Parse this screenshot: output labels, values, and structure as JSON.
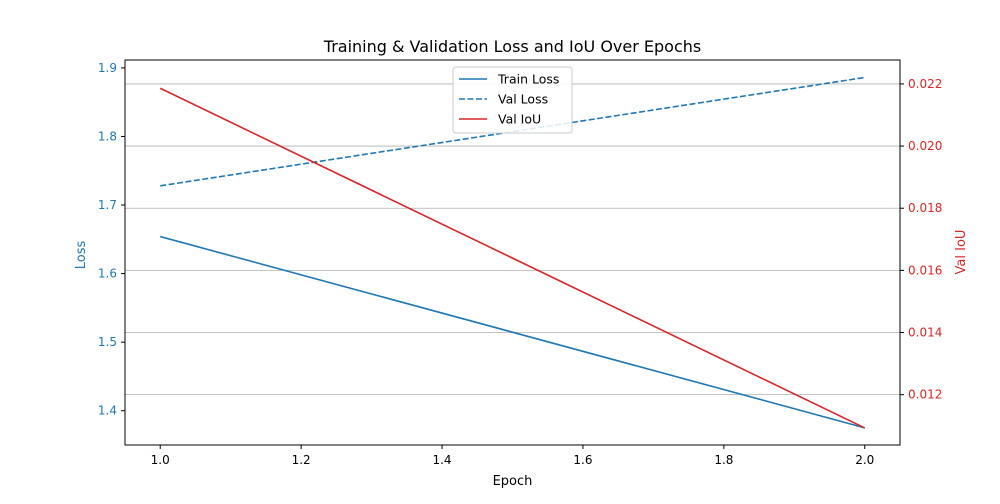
{
  "chart_data": {
    "type": "line",
    "title": "Training & Validation Loss and IoU Over Epochs",
    "xlabel": "Epoch",
    "ylabel": "Loss",
    "y2label": "Val IoU",
    "xlim": [
      0.95,
      2.05
    ],
    "ylim": [
      1.35,
      1.9115
    ],
    "y2lim": [
      0.01038,
      0.02277
    ],
    "x_ticks": [
      1.0,
      1.2,
      1.4,
      1.6,
      1.8,
      2.0
    ],
    "x_tick_labels": [
      "1.0",
      "1.2",
      "1.4",
      "1.6",
      "1.8",
      "2.0"
    ],
    "y_ticks": [
      1.4,
      1.5,
      1.6,
      1.7,
      1.8,
      1.9
    ],
    "y_tick_labels": [
      "1.4",
      "1.5",
      "1.6",
      "1.7",
      "1.8",
      "1.9"
    ],
    "y2_ticks": [
      0.012,
      0.014,
      0.016,
      0.018,
      0.02,
      0.022
    ],
    "y2_tick_labels": [
      "0.012",
      "0.014",
      "0.016",
      "0.018",
      "0.020",
      "0.022"
    ],
    "grid": "horizontal, right axis",
    "legend_position": "upper-center",
    "x": [
      1.0,
      2.0
    ],
    "series": [
      {
        "name": "Train Loss",
        "axis": "left",
        "values": [
          1.654,
          1.375
        ],
        "color": "#1f77b4",
        "style": "solid"
      },
      {
        "name": "Val Loss",
        "axis": "left",
        "values": [
          1.728,
          1.886
        ],
        "color": "#1f77b4",
        "style": "dashed"
      },
      {
        "name": "Val IoU",
        "axis": "right",
        "values": [
          0.02186,
          0.01093
        ],
        "color": "#d62728",
        "style": "solid"
      }
    ],
    "colors": {
      "left_axis": "#1f77b4",
      "right_axis": "#d62728",
      "grid": "#b0b0b0",
      "spine": "#000000"
    }
  }
}
